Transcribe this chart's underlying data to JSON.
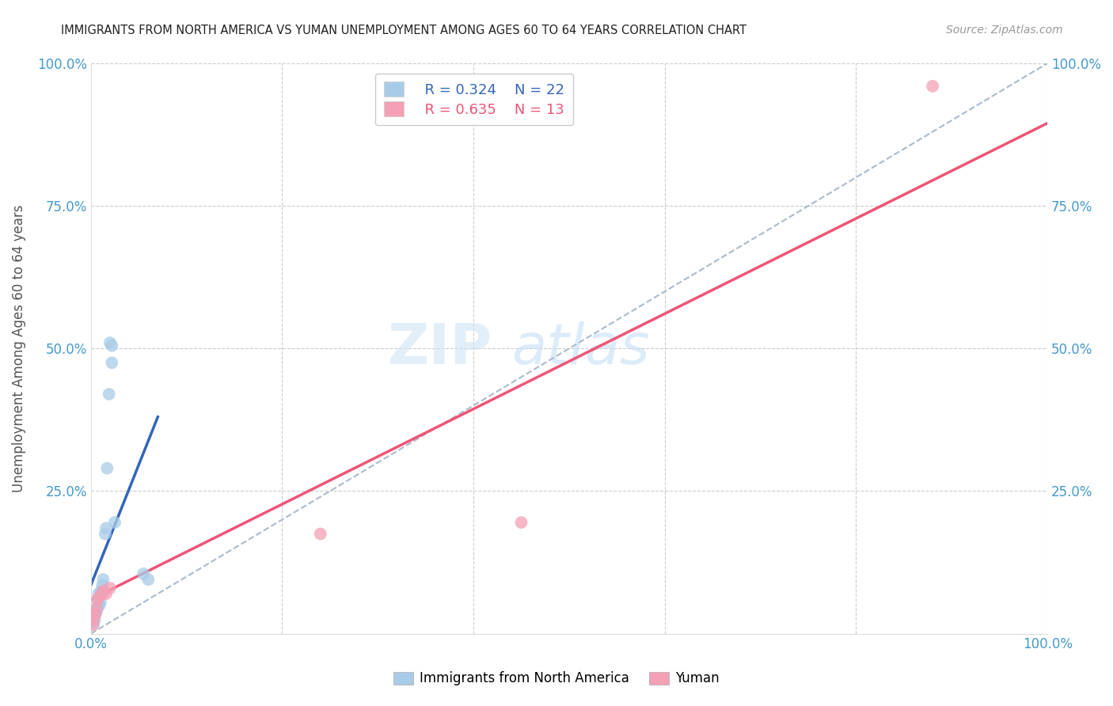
{
  "title": "IMMIGRANTS FROM NORTH AMERICA VS YUMAN UNEMPLOYMENT AMONG AGES 60 TO 64 YEARS CORRELATION CHART",
  "source": "Source: ZipAtlas.com",
  "ylabel": "Unemployment Among Ages 60 to 64 years",
  "xlim": [
    0,
    1.0
  ],
  "ylim": [
    0,
    1.0
  ],
  "legend_r1": "R = 0.324",
  "legend_n1": "N = 22",
  "legend_r2": "R = 0.635",
  "legend_n2": "N = 13",
  "watermark_text": "ZIP",
  "watermark_text2": "atlas",
  "blue_scatter_x": [
    0.003,
    0.004,
    0.005,
    0.006,
    0.007,
    0.007,
    0.008,
    0.009,
    0.01,
    0.011,
    0.012,
    0.013,
    0.015,
    0.016,
    0.017,
    0.019,
    0.02,
    0.022,
    0.022,
    0.025,
    0.055,
    0.06
  ],
  "blue_scatter_y": [
    0.018,
    0.025,
    0.035,
    0.04,
    0.045,
    0.06,
    0.07,
    0.05,
    0.055,
    0.075,
    0.085,
    0.095,
    0.175,
    0.185,
    0.29,
    0.42,
    0.51,
    0.505,
    0.475,
    0.195,
    0.105,
    0.095
  ],
  "pink_scatter_x": [
    0.002,
    0.003,
    0.005,
    0.006,
    0.007,
    0.009,
    0.012,
    0.013,
    0.016,
    0.02,
    0.24,
    0.45,
    0.88
  ],
  "pink_scatter_y": [
    0.015,
    0.025,
    0.035,
    0.045,
    0.06,
    0.065,
    0.07,
    0.075,
    0.07,
    0.08,
    0.175,
    0.195,
    0.96
  ],
  "blue_line_x": [
    0.0,
    0.07
  ],
  "blue_line_y": [
    0.085,
    0.38
  ],
  "pink_line_x": [
    0.0,
    1.0
  ],
  "pink_line_y": [
    0.06,
    0.895
  ],
  "diag_line_x": [
    0.0,
    1.0
  ],
  "diag_line_y": [
    0.0,
    1.0
  ],
  "blue_scatter_color": "#a8cce8",
  "pink_scatter_color": "#f4a0b5",
  "blue_line_color": "#3366bb",
  "pink_line_color": "#ee5577",
  "diag_line_color": "#aabbcc",
  "grid_color": "#cccccc",
  "title_color": "#222222",
  "axis_label_color": "#555555",
  "tick_label_color": "#4499cc",
  "bg_color": "#ffffff"
}
